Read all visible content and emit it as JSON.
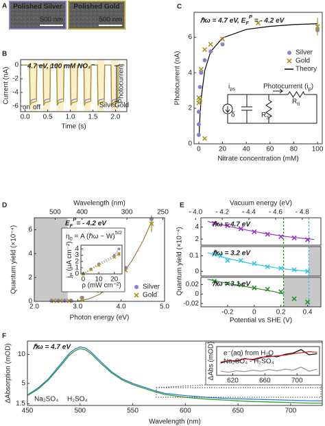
{
  "panel_a": {
    "label": "A",
    "images": [
      {
        "title": "Polished Silver",
        "scale_bar": "500 nm"
      },
      {
        "title": "Polished Gold",
        "scale_bar": "500 nm"
      }
    ]
  },
  "chart_data": [
    {
      "panel_label": "B",
      "type": "line",
      "xlabel": "Time (s)",
      "ylabel": "Current (nA)",
      "xlim": [
        -0.1,
        2.25
      ],
      "ylim": [
        -6.8,
        0.8
      ],
      "xticks": [
        {
          "value": 0,
          "label": "0.0"
        },
        0.5,
        {
          "value": 1,
          "label": "1.0"
        },
        1.5,
        {
          "value": 2,
          "label": "2.0"
        }
      ],
      "yticks": [
        0,
        -2,
        -4,
        -6
      ],
      "on_intervals": [
        [
          0.1,
          0.25
        ],
        [
          0.4,
          0.55
        ],
        [
          0.7,
          0.85
        ],
        [
          1.0,
          1.15
        ],
        [
          1.3,
          1.45
        ],
        [
          1.6,
          1.75
        ],
        [
          1.9,
          2.05
        ]
      ],
      "shade_color": "#fbeecb",
      "x": [
        -0.05,
        0.1,
        0.11,
        0.14,
        0.25,
        0.26,
        0.4,
        0.41,
        0.44,
        0.55,
        0.56,
        0.7,
        0.71,
        0.74,
        0.85,
        0.86,
        1.0,
        1.01,
        1.04,
        1.15,
        1.16,
        1.3,
        1.31,
        1.34,
        1.45,
        1.46,
        1.6,
        1.61,
        1.64,
        1.75,
        1.76,
        1.9,
        1.91,
        1.94,
        2.05,
        2.06,
        2.2
      ],
      "series": [
        {
          "name": "Silver",
          "color": "#8a7fd0",
          "values": [
            0,
            0,
            -5.5,
            -5.1,
            -4.9,
            0,
            0,
            -5.5,
            -5.1,
            -4.9,
            0,
            0,
            -5.5,
            -5.1,
            -4.9,
            0,
            0,
            -5.5,
            -5.1,
            -4.9,
            0,
            0,
            -5.5,
            -5.1,
            -4.9,
            0,
            0,
            -5.5,
            -5.1,
            -4.9,
            0,
            0,
            -5.5,
            -5.1,
            -4.9,
            0,
            0
          ]
        },
        {
          "name": "Gold",
          "color": "#a8941e",
          "values": [
            0,
            0,
            -5.9,
            -5.5,
            -5.3,
            0,
            0,
            -5.9,
            -5.5,
            -5.3,
            0,
            0,
            -5.9,
            -5.5,
            -5.3,
            0,
            0,
            -5.9,
            -5.5,
            -5.3,
            0,
            0,
            -5.9,
            -5.5,
            -5.3,
            0,
            0,
            -5.9,
            -5.5,
            -5.3,
            0,
            0,
            -5.9,
            -5.5,
            -5.3,
            0,
            0
          ]
        }
      ],
      "legend": {
        "position": "bottom-right",
        "style": "text"
      },
      "annotations": [
        "4.7 eV, 100 mM NO₃⁻",
        "on",
        "off",
        "Photocurrent"
      ]
    },
    {
      "panel_label": "C",
      "type": "scatter",
      "xlabel": "Nitrate concentration (mM)",
      "ylabel": "Photocurrent (nA)",
      "xlim": [
        -4,
        104
      ],
      "ylim": [
        0,
        7.4
      ],
      "xticks": [
        0,
        20,
        40,
        60,
        80,
        100
      ],
      "yticks": [
        0,
        2,
        4,
        6
      ],
      "series": [
        {
          "name": "Silver",
          "color": "#8a7fd0",
          "marker": "circle",
          "x": [
            0,
            0,
            0,
            1,
            2,
            5,
            10,
            20,
            100
          ],
          "values": [
            0.5,
            1.1,
            1.8,
            3.2,
            4.0,
            4.7,
            5.2,
            5.6,
            6.4
          ]
        },
        {
          "name": "Gold",
          "color": "#a8941e",
          "marker": "x",
          "x": [
            0,
            0,
            1,
            2,
            5,
            5,
            10,
            20,
            50,
            100
          ],
          "values": [
            2.3,
            2.6,
            2.5,
            4.2,
            0.3,
            5.3,
            5.6,
            5.9,
            6.8,
            6.6
          ],
          "errors": [
            null,
            null,
            null,
            null,
            null,
            null,
            null,
            null,
            null,
            0.5
          ]
        },
        {
          "name": "Theory",
          "color": "#000000",
          "line": "solid",
          "x": [
            0.3,
            1,
            2,
            5,
            10,
            20,
            40,
            60,
            80,
            100
          ],
          "values": [
            0.55,
            1.56,
            2.55,
            4.12,
            5.19,
            5.96,
            6.44,
            6.61,
            6.71,
            6.76
          ]
        }
      ],
      "legend": {
        "position": "center-right",
        "style": "marker"
      },
      "annotations": [
        [
          {
            "text": "ℏω = 4.7 eV, E"
          },
          {
            "text": "F",
            "style": "sub"
          },
          {
            "text": "P",
            "style": "sup"
          },
          {
            "text": " = - 4.2 eV"
          }
        ],
        [
          {
            "text": "i"
          },
          {
            "text": "ps",
            "style": "sub"
          }
        ],
        "δ",
        [
          {
            "text": "R"
          },
          {
            "text": "S",
            "style": "sub"
          }
        ],
        [
          {
            "text": "R"
          },
          {
            "text": "tl",
            "style": "sub"
          }
        ],
        [
          {
            "text": "Photocurrent (i"
          },
          {
            "text": "p",
            "style": "sub"
          },
          {
            "text": ")"
          }
        ]
      ]
    },
    {
      "panel_label": "D",
      "type": "scatter",
      "xlabel": "Photon energy (eV)",
      "ylabel": "Quantum yield (×10⁻⁴)",
      "x2label": "Wavelength (nm)",
      "xlim": [
        2.0,
        5.0
      ],
      "ylim": [
        0,
        7
      ],
      "xticks": [
        {
          "value": 2,
          "label": "2.0"
        },
        {
          "value": 3,
          "label": "3.0"
        },
        {
          "value": 4,
          "label": "4.0"
        },
        {
          "value": 5,
          "label": "5.0"
        }
      ],
      "yticks": [
        0,
        2,
        4,
        6
      ],
      "x2lim": [
        620,
        248
      ],
      "x2_scale": "reciprocal",
      "x2ticks": [
        500,
        400,
        300,
        250
      ],
      "shaded_x": [
        2.0,
        2.77
      ],
      "shade_color": "#c8c8c8",
      "series": [
        {
          "color": "#9c7c3c",
          "line": "solid",
          "x": [
            2.77,
            3,
            3.25,
            3.5,
            3.75,
            4,
            4.25,
            4.5,
            4.75
          ],
          "values": [
            0,
            0.03,
            0.2,
            0.58,
            1.22,
            2.15,
            3.41,
            5.04,
            7.06
          ]
        },
        {
          "name": "Silver",
          "color": "#8a7fd0",
          "marker": "circle",
          "x": [
            2.4,
            2.55,
            2.7,
            2.85,
            3.1,
            3.5,
            3.8,
            4.1,
            4.7
          ],
          "values": [
            0.05,
            0.05,
            0.05,
            0.05,
            0.3,
            1.1,
            1.9,
            2.8,
            6.9
          ]
        },
        {
          "name": "Gold",
          "color": "#a8941e",
          "marker": "x",
          "x": [
            2.45,
            2.6,
            2.8,
            3.1,
            3.5,
            3.8,
            4.1,
            4.7
          ],
          "values": [
            0.05,
            0.05,
            0.05,
            0.2,
            0.9,
            1.5,
            2.6,
            6.5
          ],
          "errors": [
            null,
            null,
            null,
            null,
            null,
            null,
            null,
            0.7
          ]
        }
      ],
      "legend": {
        "position": "bottom-right",
        "style": "marker"
      },
      "annotations": [
        [
          {
            "text": "E"
          },
          {
            "text": "F",
            "style": "sub"
          },
          {
            "text": "P",
            "style": "sup"
          },
          {
            "text": "= - 4.2 eV"
          }
        ]
      ]
    },
    {
      "type": "scatter",
      "xlabel": "ρ (mW cm⁻²)",
      "ylabel": [
        {
          "text": "j"
        },
        {
          "text": "P",
          "style": "sub"
        },
        {
          "text": " (μA cm⁻²)"
        }
      ],
      "xlim": [
        -1.5,
        25
      ],
      "ylim": [
        0,
        4.6
      ],
      "xticks": [
        0,
        10,
        20
      ],
      "yticks": [
        0,
        1,
        2,
        3,
        4
      ],
      "series": [
        {
          "color": "#8a7fd0",
          "marker": "circle",
          "line": "dotted",
          "x": [
            0,
            5,
            10,
            20,
            23
          ],
          "values": [
            0,
            0.8,
            1.6,
            3.0,
            4.0
          ]
        },
        {
          "color": "#a8941e",
          "marker": "x",
          "line": "dotted",
          "x": [
            0,
            5,
            10,
            20,
            23
          ],
          "values": [
            0,
            0.7,
            1.4,
            2.7,
            3.2
          ],
          "errors": [
            null,
            null,
            null,
            null,
            0.3
          ]
        }
      ],
      "annotations": [
        [
          {
            "text": "η"
          },
          {
            "text": "0",
            "style": "sub"
          },
          {
            "text": " = A (ℏω − W)"
          },
          {
            "text": "5/2",
            "style": "sup"
          }
        ]
      ]
    },
    {
      "panel_label": "E",
      "type": "scatter",
      "x2label": "Vacuum energy (eV)",
      "xlim": [
        -0.4,
        0.5
      ],
      "ylim": [
        1,
        5.5
      ],
      "yticks": [
        2,
        4
      ],
      "x2lim": [
        -4.04,
        -4.94
      ],
      "x2ticks": [
        {
          "value": -4.0,
          "label": "- 4.0"
        },
        {
          "value": -4.2,
          "label": "- 4.2"
        },
        {
          "value": -4.4,
          "label": "- 4.4"
        },
        {
          "value": -4.6,
          "label": "- 4.6"
        },
        {
          "value": -4.8,
          "label": "- 4.8"
        }
      ],
      "vlines": [
        {
          "x": 0.22,
          "color": "#2b8c2b"
        },
        {
          "x": 0.41,
          "color": "#2ec4e6"
        }
      ],
      "series": [
        {
          "color": "#9b30d0",
          "marker": "x",
          "x": [
            -0.3,
            -0.2,
            -0.1,
            0,
            0.1,
            0.2,
            0.3,
            0.4
          ],
          "values": [
            4.6,
            4.2,
            3.7,
            3.2,
            2.8,
            2.4,
            2.2,
            1.9
          ]
        },
        {
          "color": "#9b30d0",
          "line": "solid",
          "x": [
            -0.35,
            -0.25,
            -0.15,
            -0.05,
            0.05,
            0.15,
            0.25,
            0.35,
            0.45
          ],
          "values": [
            4.9,
            4.4,
            3.9,
            3.45,
            3.05,
            2.7,
            2.4,
            2.15,
            1.95
          ]
        }
      ],
      "annotations": [
        "ℏω = 4.7 eV"
      ]
    },
    {
      "type": "scatter",
      "ylabel": "Quantum yield (×10⁻⁴)",
      "xlim": [
        -0.4,
        0.5
      ],
      "ylim": [
        -0.03,
        0.16
      ],
      "yticks": [
        0,
        0.1
      ],
      "shaded_x": [
        0.41,
        0.5
      ],
      "shade_color": "#c8c8c8",
      "vlines": [
        {
          "x": 0.22,
          "color": "#2b8c2b"
        },
        {
          "x": 0.41,
          "color": "#2ec4e6"
        }
      ],
      "series": [
        {
          "color": "#2ec4e6",
          "marker": "x",
          "x": [
            -0.3,
            -0.25,
            -0.2,
            -0.1,
            0,
            0.1,
            0.2,
            0.3,
            0.4
          ],
          "values": [
            0.11,
            0.1,
            0.07,
            0.07,
            0.05,
            0.03,
            0.02,
            0.01,
            0.0
          ]
        },
        {
          "color": "#2ec4e6",
          "line": "solid",
          "x": [
            -0.35,
            -0.25,
            -0.15,
            -0.05,
            0.05,
            0.15,
            0.25,
            0.35,
            0.4
          ],
          "values": [
            0.12,
            0.095,
            0.074,
            0.055,
            0.039,
            0.025,
            0.013,
            0.005,
            0.0
          ]
        }
      ],
      "annotations": [
        "ℏω = 3.2 eV"
      ]
    },
    {
      "type": "scatter",
      "xlabel": "Potential vs SHE (V)",
      "xlim": [
        -0.4,
        0.5
      ],
      "ylim": [
        -0.027,
        0.035
      ],
      "xticks": [
        -0.2,
        0,
        0.2,
        0.4
      ],
      "yticks": [
        -0.02,
        0,
        0.02
      ],
      "shaded_x": [
        0.22,
        0.5
      ],
      "shade_color": "#c8c8c8",
      "vlines": [
        {
          "x": 0.22,
          "color": "#2b8c2b"
        },
        {
          "x": 0.41,
          "color": "#2ec4e6"
        }
      ],
      "series": [
        {
          "color": "#2b8c2b",
          "marker": "x",
          "x": [
            -0.3,
            -0.2,
            -0.1,
            0,
            0.1,
            0.2,
            0.3,
            0.4
          ],
          "values": [
            0.027,
            0.022,
            0.019,
            0.013,
            0.01,
            0.005,
            -0.01,
            -0.017
          ]
        },
        {
          "color": "#2b8c2b",
          "line": "solid",
          "x": [
            -0.35,
            -0.25,
            -0.15,
            -0.05,
            0.05,
            0.15,
            0.22
          ],
          "values": [
            0.031,
            0.025,
            0.02,
            0.015,
            0.01,
            0.005,
            0.0
          ]
        }
      ],
      "annotations": [
        "ℏω = 3.1 eV"
      ]
    },
    {
      "panel_label": "F",
      "type": "line",
      "xlabel": "Wavelength (nm)",
      "ylabel": "ΔAbsorption (mOD)",
      "xlim": [
        450,
        730
      ],
      "ylim": [
        1.2,
        12.3
      ],
      "xticks": [
        450,
        500,
        550,
        600,
        650,
        700
      ],
      "yticks": [
        1.5,
        5,
        10
      ],
      "x": [
        450,
        460,
        470,
        480,
        490,
        495,
        500,
        505,
        510,
        520,
        530,
        540,
        550,
        560,
        570,
        580,
        600,
        620,
        640,
        660,
        680,
        700,
        720,
        730
      ],
      "series": [
        {
          "name": "Na₂SO₄",
          "color": "#2a7ad0",
          "values": [
            3.0,
            4.2,
            5.8,
            8.0,
            10.2,
            10.9,
            11.3,
            11.1,
            10.5,
            8.7,
            7.0,
            5.8,
            5.0,
            4.4,
            3.8,
            3.3,
            2.9,
            2.6,
            2.4,
            2.3,
            2.2,
            2.1,
            2.0,
            2.0
          ]
        },
        {
          "name": "H₂SO₄",
          "color": "#2aa02a",
          "values": [
            2.9,
            4.0,
            5.6,
            7.7,
            9.9,
            10.6,
            11.0,
            10.8,
            10.2,
            8.4,
            6.8,
            5.6,
            4.8,
            4.2,
            3.6,
            3.1,
            2.6,
            2.3,
            2.1,
            1.9,
            1.8,
            1.7,
            1.6,
            1.6
          ]
        }
      ],
      "legend": {
        "position": "bottom-left",
        "style": "text"
      },
      "annotations": [
        "ℏω = 4.7 eV"
      ]
    },
    {
      "type": "line",
      "ylabel": "ΔAbs (mOD)",
      "xlim": [
        600,
        728
      ],
      "ylim": [
        -0.1,
        1.3
      ],
      "xticks": [
        620,
        660,
        700
      ],
      "x": [
        605,
        615,
        625,
        635,
        645,
        655,
        665,
        675,
        685,
        695,
        705,
        715,
        725
      ],
      "series": [
        {
          "color": "#999999",
          "values": [
            0.1,
            0.05,
            0.12,
            0.08,
            0.15,
            0.1,
            0.18,
            0.12,
            0.2,
            0.15,
            0.3,
            0.1,
            0.2
          ]
        },
        {
          "name": "e⁻(aq) from H₂O",
          "color": "#000000",
          "values": [
            0.5,
            0.62,
            0.58,
            0.72,
            0.65,
            0.75,
            0.85,
            0.8,
            0.92,
            0.98,
            1.15,
            0.9,
            0.95
          ]
        },
        {
          "name": "Na₂SO₄ - H₂SO₄",
          "color": "#e02020",
          "values": [
            0.55,
            0.6,
            0.62,
            0.7,
            0.68,
            0.78,
            0.8,
            0.85,
            0.88,
            0.95,
            1.0,
            1.05,
            1.02
          ]
        }
      ],
      "legend": {
        "position": "top-left",
        "style": "text"
      }
    }
  ]
}
